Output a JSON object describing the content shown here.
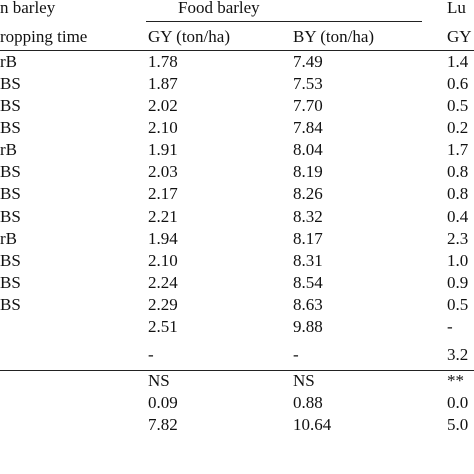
{
  "table": {
    "header_groups": [
      "n barley",
      "Food barley",
      "Lu"
    ],
    "columns": [
      "ropping time",
      "GY (ton/ha)",
      "BY (ton/ha)",
      "GY"
    ],
    "rows": [
      [
        "rB",
        "1.78",
        "7.49",
        "1.4"
      ],
      [
        "BS",
        "1.87",
        "7.53",
        "0.6"
      ],
      [
        "BS",
        "2.02",
        "7.70",
        "0.5"
      ],
      [
        "BS",
        "2.10",
        "7.84",
        "0.2"
      ],
      [
        "rB",
        "1.91",
        "8.04",
        "1.7"
      ],
      [
        "BS",
        "2.03",
        "8.19",
        "0.8"
      ],
      [
        "BS",
        "2.17",
        "8.26",
        "0.8"
      ],
      [
        "BS",
        "2.21",
        "8.32",
        "0.4"
      ],
      [
        "rB",
        "1.94",
        "8.17",
        "2.3"
      ],
      [
        "BS",
        "2.10",
        "8.31",
        "1.0"
      ],
      [
        "BS",
        "2.24",
        "8.54",
        "0.9"
      ],
      [
        "BS",
        "2.29",
        "8.63",
        "0.5"
      ],
      [
        null,
        "2.51",
        "9.88",
        "-"
      ],
      [
        null,
        "-",
        "-",
        "3.2"
      ]
    ],
    "stats_rows": [
      [
        null,
        "NS",
        "NS",
        "**"
      ],
      [
        null,
        "0.09",
        "0.88",
        "0.0"
      ],
      [
        null,
        "7.82",
        "10.64",
        "5.0"
      ]
    ]
  }
}
